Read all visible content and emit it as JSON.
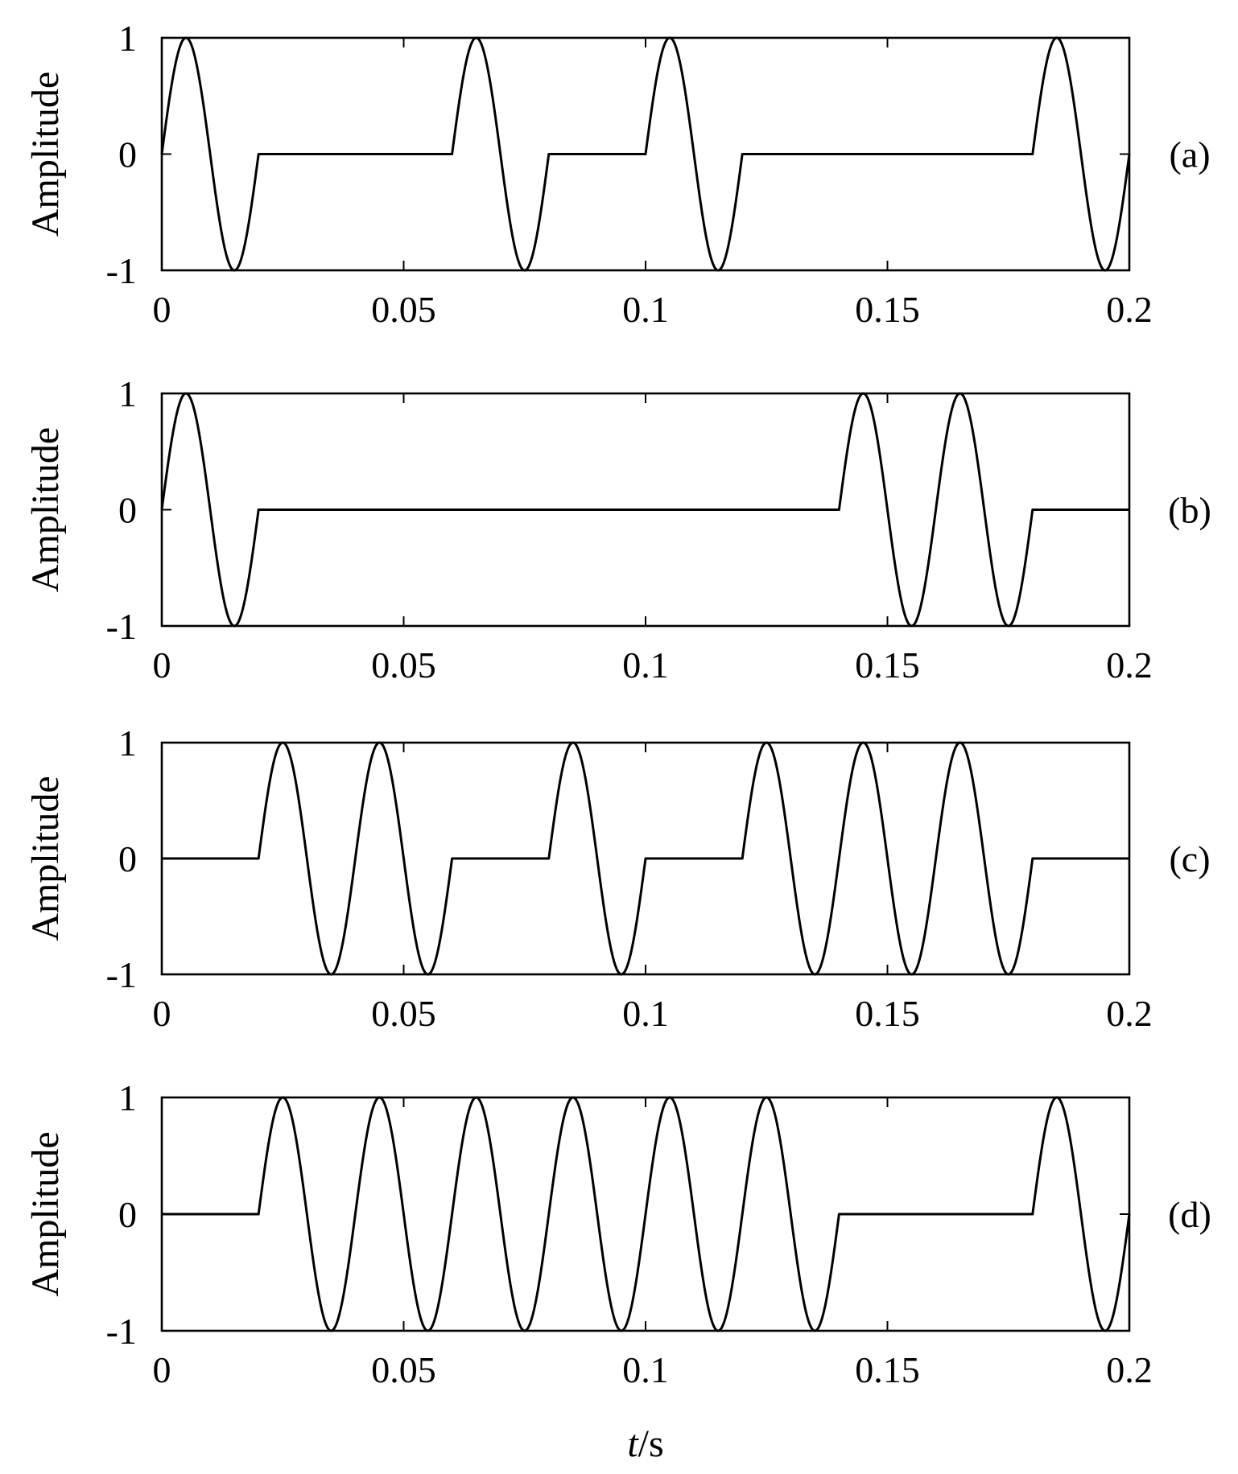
{
  "chart_data": [
    {
      "panel": "(a)",
      "type": "line",
      "ylabel": "Amplitude",
      "xlabel": "",
      "xlim": [
        0,
        0.2
      ],
      "ylim": [
        -1,
        1
      ],
      "x_ticks": [
        "0",
        "0.05",
        "0.1",
        "0.15",
        "0.2"
      ],
      "y_ticks": [
        "1",
        "0",
        "-1"
      ],
      "frequency_hz": 50,
      "segment_duration_s": 0.02,
      "segments": [
        1,
        0,
        0,
        1,
        0,
        1,
        0,
        0,
        0,
        1
      ],
      "grid": false
    },
    {
      "panel": "(b)",
      "type": "line",
      "ylabel": "Amplitude",
      "xlabel": "",
      "xlim": [
        0,
        0.2
      ],
      "ylim": [
        -1,
        1
      ],
      "x_ticks": [
        "0",
        "0.05",
        "0.1",
        "0.15",
        "0.2"
      ],
      "y_ticks": [
        "1",
        "0",
        "-1"
      ],
      "frequency_hz": 50,
      "segment_duration_s": 0.02,
      "segments": [
        1,
        0,
        0,
        0,
        0,
        0,
        0,
        1,
        1,
        0
      ],
      "grid": false
    },
    {
      "panel": "(c)",
      "type": "line",
      "ylabel": "Amplitude",
      "xlabel": "",
      "xlim": [
        0,
        0.2
      ],
      "ylim": [
        -1,
        1
      ],
      "x_ticks": [
        "0",
        "0.05",
        "0.1",
        "0.15",
        "0.2"
      ],
      "y_ticks": [
        "1",
        "0",
        "-1"
      ],
      "frequency_hz": 50,
      "segment_duration_s": 0.02,
      "segments": [
        0,
        1,
        1,
        0,
        1,
        0,
        1,
        1,
        1,
        0
      ],
      "grid": false
    },
    {
      "panel": "(d)",
      "type": "line",
      "ylabel": "Amplitude",
      "xlabel_italic": "t",
      "xlabel_unit": "/s",
      "xlim": [
        0,
        0.2
      ],
      "ylim": [
        -1,
        1
      ],
      "x_ticks": [
        "0",
        "0.05",
        "0.1",
        "0.15",
        "0.2"
      ],
      "y_ticks": [
        "1",
        "0",
        "-1"
      ],
      "frequency_hz": 50,
      "segment_duration_s": 0.02,
      "segments": [
        0,
        1,
        1,
        1,
        1,
        1,
        1,
        0,
        0,
        1
      ],
      "grid": false
    }
  ]
}
